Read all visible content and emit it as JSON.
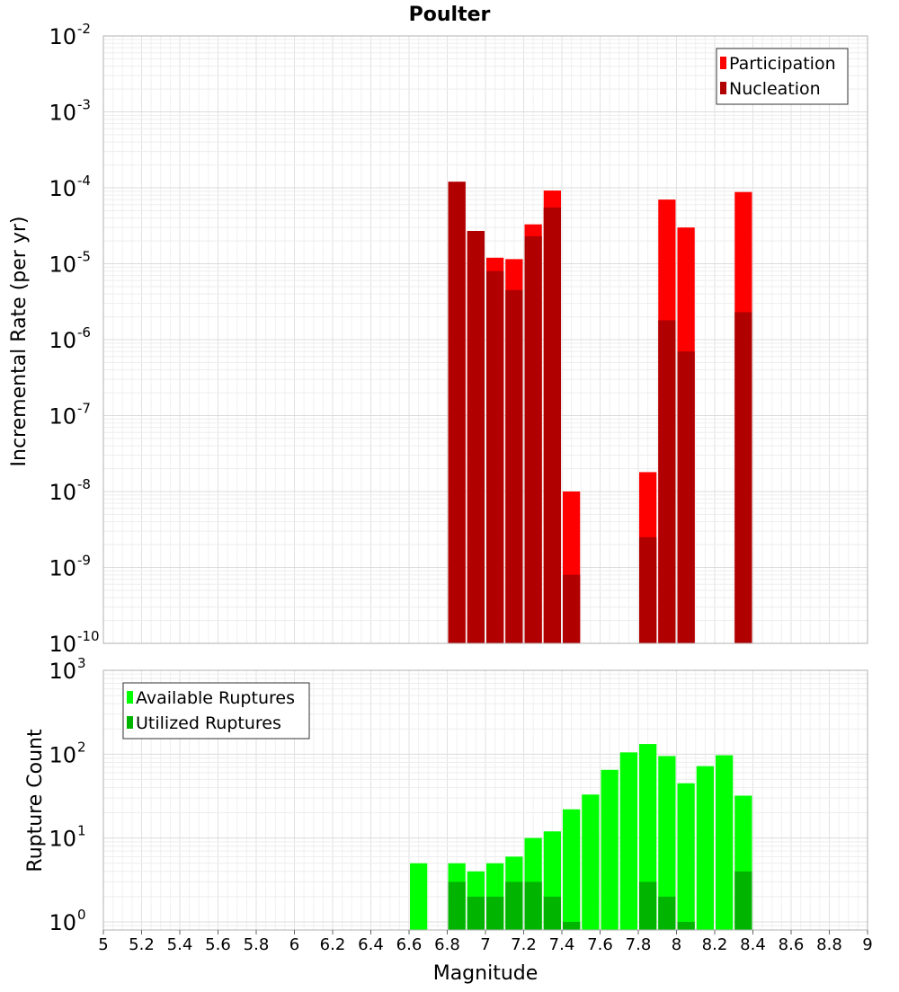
{
  "chart_data": [
    {
      "type": "bar",
      "title": "Poulter",
      "xlabel": "",
      "ylabel": "Incremental Rate (per yr)",
      "y_scale": "log",
      "xlim": [
        5,
        9
      ],
      "ylim": [
        1e-10,
        0.01
      ],
      "y_ticks": [
        {
          "base": "10",
          "exp": "-10"
        },
        {
          "base": "10",
          "exp": "-9"
        },
        {
          "base": "10",
          "exp": "-8"
        },
        {
          "base": "10",
          "exp": "-7"
        },
        {
          "base": "10",
          "exp": "-6"
        },
        {
          "base": "10",
          "exp": "-5"
        },
        {
          "base": "10",
          "exp": "-4"
        },
        {
          "base": "10",
          "exp": "-3"
        },
        {
          "base": "10",
          "exp": "-2"
        }
      ],
      "grid": true,
      "legend_position": "top-right",
      "series": [
        {
          "name": "Participation",
          "color": "#ff0000",
          "x": [
            6.85,
            6.95,
            7.05,
            7.15,
            7.25,
            7.35,
            7.45,
            7.85,
            7.95,
            8.05,
            8.35
          ],
          "values": [
            0.00012,
            2.7e-05,
            1.2e-05,
            1.15e-05,
            3.3e-05,
            9.2e-05,
            1e-08,
            1.8e-08,
            7e-05,
            3e-05,
            8.8e-05
          ]
        },
        {
          "name": "Nucleation",
          "color": "#b00000",
          "x": [
            6.85,
            6.95,
            7.05,
            7.15,
            7.25,
            7.35,
            7.45,
            7.85,
            7.95,
            8.05,
            8.35
          ],
          "values": [
            0.00012,
            2.7e-05,
            8e-06,
            4.5e-06,
            2.3e-05,
            5.5e-05,
            8e-10,
            2.5e-09,
            1.8e-06,
            7e-07,
            2.3e-06
          ]
        }
      ]
    },
    {
      "type": "bar",
      "title": "",
      "xlabel": "Magnitude",
      "ylabel": "Rupture Count",
      "y_scale": "log",
      "xlim": [
        5,
        9
      ],
      "ylim": [
        0.8,
        1000
      ],
      "x_ticks": [
        "5",
        "5.2",
        "5.4",
        "5.6",
        "5.8",
        "6",
        "6.2",
        "6.4",
        "6.6",
        "6.8",
        "7",
        "7.2",
        "7.4",
        "7.6",
        "7.8",
        "8",
        "8.2",
        "8.4",
        "8.6",
        "8.8",
        "9"
      ],
      "y_ticks": [
        {
          "base": "10",
          "exp": "0"
        },
        {
          "base": "10",
          "exp": "1"
        },
        {
          "base": "10",
          "exp": "2"
        },
        {
          "base": "10",
          "exp": "3"
        }
      ],
      "grid": true,
      "legend_position": "top-left",
      "series": [
        {
          "name": "Available Ruptures",
          "color": "#00ff00",
          "x": [
            6.65,
            6.85,
            6.95,
            7.05,
            7.15,
            7.25,
            7.35,
            7.45,
            7.55,
            7.65,
            7.75,
            7.85,
            7.95,
            8.05,
            8.15,
            8.25,
            8.35
          ],
          "values": [
            5,
            5,
            4,
            5,
            6,
            10,
            12,
            22,
            33,
            65,
            105,
            132,
            95,
            45,
            72,
            97,
            32
          ]
        },
        {
          "name": "Utilized Ruptures",
          "color": "#00b400",
          "x": [
            6.85,
            6.95,
            7.05,
            7.15,
            7.25,
            7.35,
            7.45,
            7.85,
            7.95,
            8.05,
            8.35
          ],
          "values": [
            3,
            2,
            2,
            3,
            3,
            2,
            1,
            3,
            2,
            1,
            4
          ]
        }
      ]
    }
  ]
}
